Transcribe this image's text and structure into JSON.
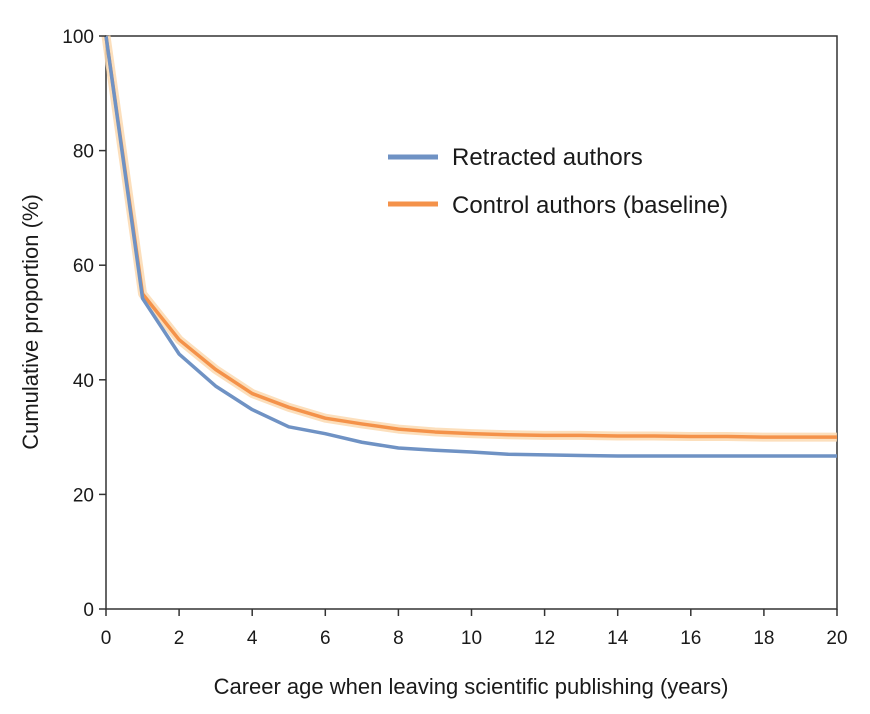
{
  "chart_data": {
    "type": "line",
    "title": "",
    "xlabel": "Career age when leaving scientific publishing (years)",
    "ylabel": "Cumulative proportion (%)",
    "xlim": [
      0,
      20
    ],
    "ylim": [
      0,
      100
    ],
    "xticks": [
      "0",
      "2",
      "4",
      "6",
      "8",
      "10",
      "12",
      "14",
      "16",
      "18",
      "20"
    ],
    "yticks": [
      "0",
      "20",
      "40",
      "60",
      "80",
      "100"
    ],
    "grid": false,
    "legend_position": "top-right",
    "series": [
      {
        "name": "Retracted authors",
        "color": "#6f92c4",
        "x": [
          0,
          1,
          2,
          3,
          4,
          5,
          6,
          7,
          8,
          9,
          10,
          11,
          12,
          13,
          14,
          15,
          16,
          17,
          18,
          19,
          20
        ],
        "y": [
          100,
          54.2,
          44.5,
          38.9,
          34.8,
          31.8,
          30.6,
          29.1,
          28.1,
          27.7,
          27.4,
          27.0,
          26.9,
          26.8,
          26.7,
          26.7,
          26.7,
          26.7,
          26.7,
          26.7,
          26.7
        ]
      },
      {
        "name": "Control authors (baseline)",
        "color": "#f4924a",
        "band_color": "#fbd9b0",
        "x": [
          0,
          1,
          2,
          3,
          4,
          5,
          6,
          7,
          8,
          9,
          10,
          11,
          12,
          13,
          14,
          15,
          16,
          17,
          18,
          19,
          20
        ],
        "y": [
          100,
          55.0,
          47.0,
          41.8,
          37.6,
          35.2,
          33.3,
          32.3,
          31.4,
          30.9,
          30.6,
          30.4,
          30.3,
          30.3,
          30.2,
          30.2,
          30.1,
          30.1,
          30.0,
          30.0,
          30.0
        ]
      }
    ]
  }
}
